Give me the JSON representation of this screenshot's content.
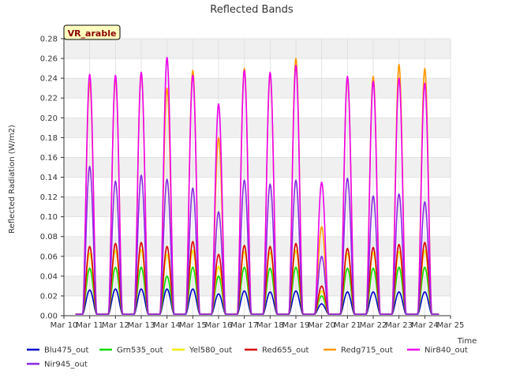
{
  "chart_data": {
    "type": "line",
    "title": "Reflected Bands",
    "xlabel": "Time",
    "ylabel": "Reflected Radiation (W/m2)",
    "annotation": "VR_arable",
    "xlim": [
      10,
      25
    ],
    "ylim": [
      0,
      0.28
    ],
    "x_ticks": [
      {
        "value": 10,
        "label": "Mar 10"
      },
      {
        "value": 11,
        "label": "Mar 11"
      },
      {
        "value": 12,
        "label": "Mar 12"
      },
      {
        "value": 13,
        "label": "Mar 13"
      },
      {
        "value": 14,
        "label": "Mar 14"
      },
      {
        "value": 15,
        "label": "Mar 15"
      },
      {
        "value": 16,
        "label": "Mar 16"
      },
      {
        "value": 17,
        "label": "Mar 17"
      },
      {
        "value": 18,
        "label": "Mar 18"
      },
      {
        "value": 19,
        "label": "Mar 19"
      },
      {
        "value": 20,
        "label": "Mar 20"
      },
      {
        "value": 21,
        "label": "Mar 21"
      },
      {
        "value": 22,
        "label": "Mar 22"
      },
      {
        "value": 23,
        "label": "Mar 23"
      },
      {
        "value": 24,
        "label": "Mar 24"
      },
      {
        "value": 25,
        "label": "Mar 25"
      }
    ],
    "y_ticks": [
      "0.00",
      "0.02",
      "0.04",
      "0.06",
      "0.08",
      "0.10",
      "0.12",
      "0.14",
      "0.16",
      "0.18",
      "0.20",
      "0.22",
      "0.24",
      "0.26",
      "0.28"
    ],
    "grid": true,
    "legend_position": "bottom",
    "x_data_unit": "day of March",
    "day_centers": [
      11,
      12,
      13,
      14,
      15,
      16,
      17,
      18,
      19,
      20,
      21,
      22,
      23,
      24
    ],
    "series": [
      {
        "name": "Blu475_out",
        "color": "#0000cc",
        "daily_peaks": [
          0.026,
          0.027,
          0.027,
          0.027,
          0.027,
          0.022,
          0.025,
          0.024,
          0.025,
          0.012,
          0.024,
          0.024,
          0.024,
          0.024
        ]
      },
      {
        "name": "Grn535_out",
        "color": "#00dd00",
        "daily_peaks": [
          0.048,
          0.049,
          0.049,
          0.04,
          0.049,
          0.04,
          0.049,
          0.048,
          0.049,
          0.02,
          0.048,
          0.048,
          0.049,
          0.049
        ]
      },
      {
        "name": "Yel580_out",
        "color": "#eeee00",
        "daily_peaks": [
          0.063,
          0.066,
          0.067,
          0.062,
          0.066,
          0.05,
          0.065,
          0.064,
          0.066,
          0.025,
          0.063,
          0.064,
          0.065,
          0.066
        ]
      },
      {
        "name": "Red655_out",
        "color": "#dd0000",
        "daily_peaks": [
          0.07,
          0.073,
          0.074,
          0.07,
          0.075,
          0.062,
          0.071,
          0.07,
          0.073,
          0.03,
          0.068,
          0.069,
          0.072,
          0.074
        ]
      },
      {
        "name": "Redg715_out",
        "color": "#ff9900",
        "daily_peaks": [
          0.236,
          0.24,
          0.246,
          0.23,
          0.248,
          0.18,
          0.25,
          0.245,
          0.26,
          0.09,
          0.24,
          0.242,
          0.254,
          0.25
        ]
      },
      {
        "name": "Nir840_out",
        "color": "#ee00ee",
        "daily_peaks": [
          0.244,
          0.243,
          0.246,
          0.261,
          0.243,
          0.214,
          0.248,
          0.246,
          0.253,
          0.135,
          0.242,
          0.237,
          0.24,
          0.235
        ]
      },
      {
        "name": "Nir945_out",
        "color": "#8a2be2",
        "daily_peaks": [
          0.151,
          0.136,
          0.142,
          0.138,
          0.129,
          0.105,
          0.137,
          0.133,
          0.137,
          0.06,
          0.139,
          0.121,
          0.123,
          0.115
        ]
      }
    ]
  }
}
